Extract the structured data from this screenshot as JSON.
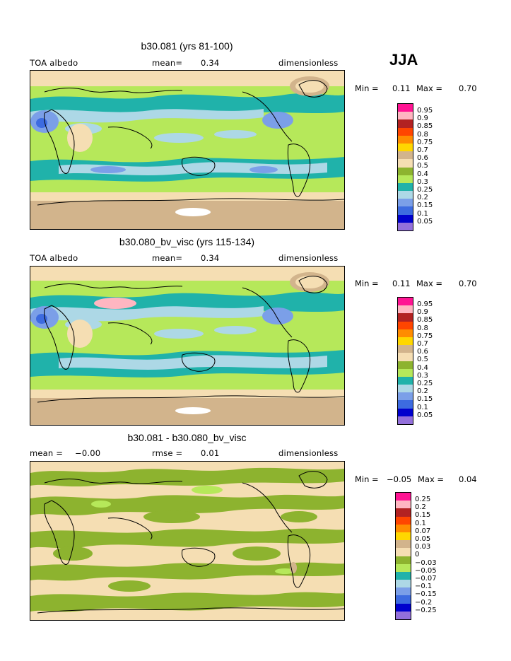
{
  "season": "JJA",
  "panels": [
    {
      "title": "b30.081 (yrs 81-100)",
      "left_label": "TOA albedo",
      "stat_label": "mean=",
      "stat_value": "0.34",
      "units": "dimensionless",
      "min_label": "Min =",
      "min_value": "0.11",
      "max_label": "Max =",
      "max_value": "0.70",
      "legend_labels": [
        "0.95",
        "0.9",
        "0.85",
        "0.8",
        "0.75",
        "0.7",
        "0.6",
        "0.5",
        "0.4",
        "0.3",
        "0.25",
        "0.2",
        "0.15",
        "0.1",
        "0.05"
      ]
    },
    {
      "title": "b30.080_bv_visc (yrs 115-134)",
      "left_label": "TOA albedo",
      "stat_label": "mean=",
      "stat_value": "0.34",
      "units": "dimensionless",
      "min_label": "Min =",
      "min_value": "0.11",
      "max_label": "Max =",
      "max_value": "0.70",
      "legend_labels": [
        "0.95",
        "0.9",
        "0.85",
        "0.8",
        "0.75",
        "0.7",
        "0.6",
        "0.5",
        "0.4",
        "0.3",
        "0.25",
        "0.2",
        "0.15",
        "0.1",
        "0.05"
      ]
    },
    {
      "title": "b30.081 - b30.080_bv_visc",
      "left_label": "mean =",
      "left_value": "−0.00",
      "stat_label": "rmse =",
      "stat_value": "0.01",
      "units": "dimensionless",
      "min_label": "Min =",
      "min_value": "−0.05",
      "max_label": "Max =",
      "max_value": "0.04",
      "legend_labels": [
        "0.25",
        "0.2",
        "0.15",
        "0.1",
        "0.07",
        "0.05",
        "0.03",
        "0",
        "−0.03",
        "−0.05",
        "−0.07",
        "−0.1",
        "−0.15",
        "−0.2",
        "−0.25"
      ]
    }
  ],
  "colorbar_colors": [
    "#ff1493",
    "#ffb6c1",
    "#b22222",
    "#ff4500",
    "#ff8c00",
    "#ffd700",
    "#d2b48c",
    "#f5deb3",
    "#8db32f",
    "#b6e85a",
    "#20b2aa",
    "#add8e6",
    "#7b9fe8",
    "#3d6be0",
    "#0000cd",
    "#9370db"
  ]
}
